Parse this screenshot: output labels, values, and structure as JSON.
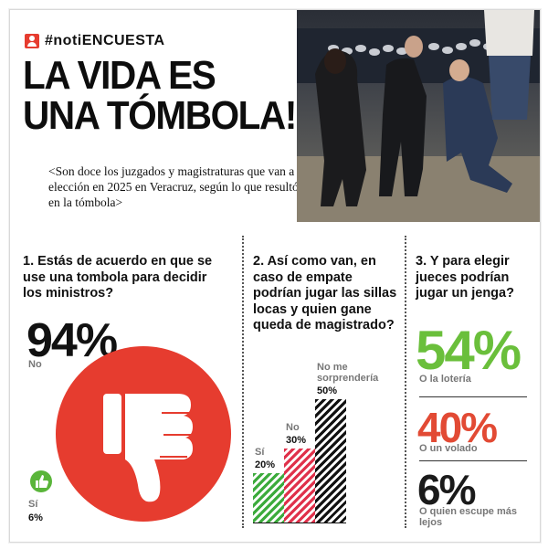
{
  "header": {
    "tag": "#notiENCUESTA",
    "headline_lines": [
      "LA VIDA ES",
      "UNA TÓMBOLA!"
    ],
    "subhead": "<Son doce los juzgados y magistraturas que van a elección en 2025 en Veracruz, según lo que resultó en la tómbola>"
  },
  "q1": {
    "question": "1. Estás de acuerdo en que se use una tombola para decidir los ministros?",
    "main_value": "94%",
    "main_label": "No",
    "minor_label": "Sí",
    "minor_value": "6%",
    "main_icon": "thumbs-down-icon",
    "minor_icon": "thumbs-up-icon"
  },
  "q2": {
    "question": "2. Así como van, en caso de empate podrían jugar las sillas locas y quien gane queda de magistrado?",
    "chart_data": {
      "type": "bar",
      "categories": [
        "Sí",
        "No",
        "No me sorprendería"
      ],
      "values": [
        20,
        30,
        50
      ],
      "value_labels": [
        "20%",
        "30%",
        "50%"
      ],
      "colors": [
        "#3cab3c",
        "#e0314b",
        "#111111"
      ]
    }
  },
  "q3": {
    "question": "3. Y para elegir jueces podrían jugar un jenga?",
    "options": [
      {
        "value": "54%",
        "label": "O la lotería",
        "color": "#6abf3b"
      },
      {
        "value": "40%",
        "label": "O un volado",
        "color": "#e24a34"
      },
      {
        "value": "6%",
        "label": "O quien escupe más lejos",
        "color": "#1a1a1a"
      }
    ]
  },
  "colors": {
    "accent_red": "#e63c2f",
    "text": "#111111"
  }
}
